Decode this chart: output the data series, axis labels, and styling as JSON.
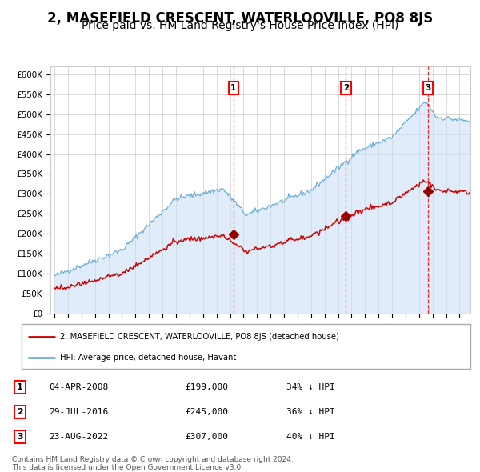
{
  "title": "2, MASEFIELD CRESCENT, WATERLOOVILLE, PO8 8JS",
  "subtitle": "Price paid vs. HM Land Registry's House Price Index (HPI)",
  "title_fontsize": 12,
  "subtitle_fontsize": 10,
  "hpi_color": "#6baed6",
  "hpi_fill_color": "#cce0f5",
  "price_color": "#cc0000",
  "sale_marker_color": "#990000",
  "background_color": "#ffffff",
  "grid_color": "#cccccc",
  "ylim": [
    0,
    620000
  ],
  "yticks": [
    0,
    50000,
    100000,
    150000,
    200000,
    250000,
    300000,
    350000,
    400000,
    450000,
    500000,
    550000,
    600000
  ],
  "ytick_labels": [
    "£0",
    "£50K",
    "£100K",
    "£150K",
    "£200K",
    "£250K",
    "£300K",
    "£350K",
    "£400K",
    "£450K",
    "£500K",
    "£550K",
    "£600K"
  ],
  "sale_events": [
    {
      "label": "1",
      "date_num": 2008.25,
      "price": 199000,
      "hpi_pct": "34% ↓ HPI",
      "date_str": "04-APR-2008",
      "price_str": "£199,000"
    },
    {
      "label": "2",
      "date_num": 2016.58,
      "price": 245000,
      "hpi_pct": "36% ↓ HPI",
      "date_str": "29-JUL-2016",
      "price_str": "£245,000"
    },
    {
      "label": "3",
      "date_num": 2022.65,
      "price": 307000,
      "hpi_pct": "40% ↓ HPI",
      "date_str": "23-AUG-2022",
      "price_str": "£307,000"
    }
  ],
  "legend_property_label": "2, MASEFIELD CRESCENT, WATERLOOVILLE, PO8 8JS (detached house)",
  "legend_hpi_label": "HPI: Average price, detached house, Havant",
  "footer_line1": "Contains HM Land Registry data © Crown copyright and database right 2024.",
  "footer_line2": "This data is licensed under the Open Government Licence v3.0.",
  "xmin": 1994.7,
  "xmax": 2025.8,
  "xticks": [
    1995,
    1996,
    1997,
    1998,
    1999,
    2000,
    2001,
    2002,
    2003,
    2004,
    2005,
    2006,
    2007,
    2008,
    2009,
    2010,
    2011,
    2012,
    2013,
    2014,
    2015,
    2016,
    2017,
    2018,
    2019,
    2020,
    2021,
    2022,
    2023,
    2024,
    2025
  ]
}
